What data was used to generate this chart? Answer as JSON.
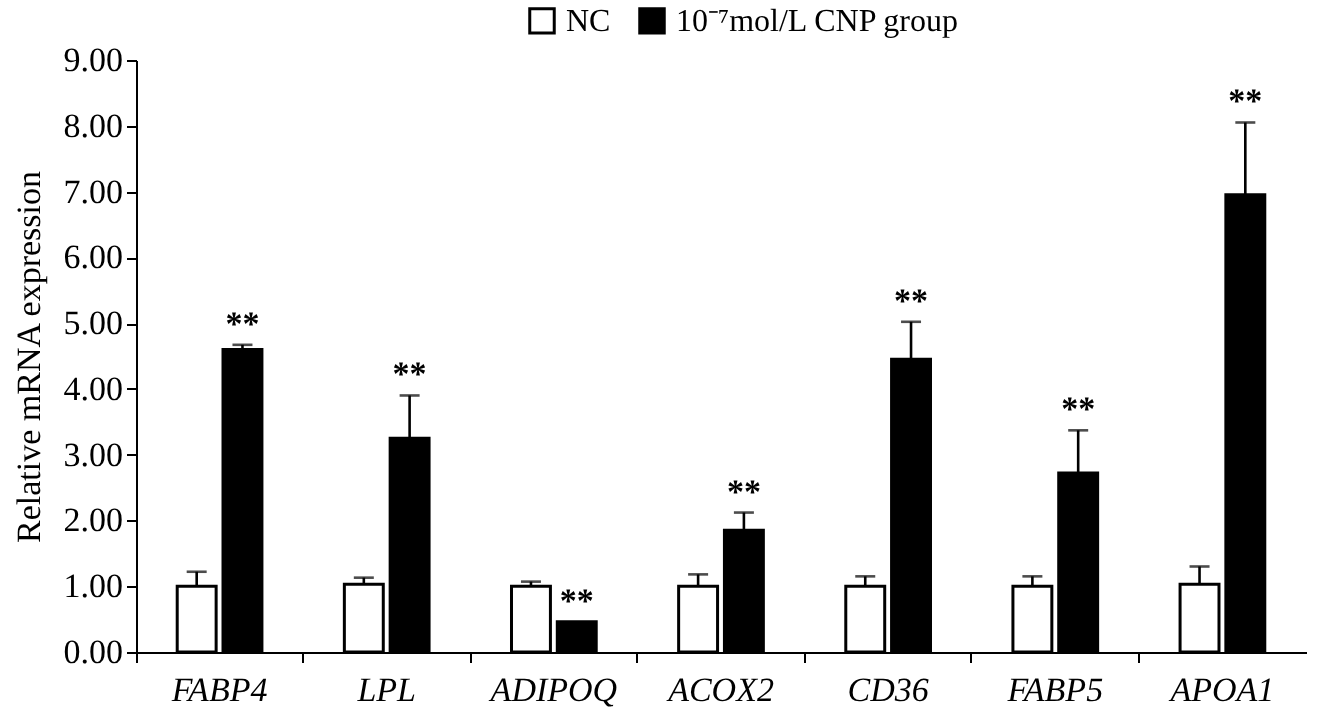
{
  "chart_data": {
    "type": "bar",
    "ylabel": "Relative mRNA expression",
    "categories": [
      "FABP4",
      "LPL",
      "ADIPOQ",
      "ACOX2",
      "CD36",
      "FABP5",
      "APOA1"
    ],
    "series": [
      {
        "name": "NC",
        "color": "#ffffff",
        "values": [
          1.0,
          1.03,
          1.0,
          1.0,
          1.0,
          1.0,
          1.03
        ],
        "errors": [
          [
            1.0,
            1.22
          ],
          [
            1.03,
            1.13
          ],
          [
            1.0,
            1.07
          ],
          [
            1.0,
            1.18
          ],
          [
            1.0,
            1.15
          ],
          [
            1.0,
            1.15
          ],
          [
            1.03,
            1.3
          ]
        ]
      },
      {
        "name": "10⁻⁷mol/L CNP  group",
        "color": "#000000",
        "values": [
          4.6,
          3.25,
          0.46,
          1.85,
          4.45,
          2.72,
          6.95
        ],
        "errors": [
          [
            4.6,
            4.67
          ],
          [
            3.25,
            3.9
          ],
          null,
          [
            1.85,
            2.12
          ],
          [
            4.45,
            5.02
          ],
          [
            2.72,
            3.37
          ],
          [
            6.95,
            8.05
          ]
        ]
      }
    ],
    "ylim": [
      0,
      9
    ],
    "yticks": [
      {
        "value": 0,
        "label": "0.00"
      },
      {
        "value": 1,
        "label": "1.00"
      },
      {
        "value": 2,
        "label": "2.00"
      },
      {
        "value": 3,
        "label": "3.00"
      },
      {
        "value": 4,
        "label": "4.00"
      },
      {
        "value": 5,
        "label": "5.00"
      },
      {
        "value": 6,
        "label": "6.00"
      },
      {
        "value": 7,
        "label": "7.00"
      },
      {
        "value": 8,
        "label": "8.00"
      },
      {
        "value": 9,
        "label": "9.00"
      }
    ],
    "annotations": [
      {
        "text": "**",
        "x": "FABP4",
        "y": 4.6
      },
      {
        "text": "**",
        "x": "LPL",
        "y": 3.25
      },
      {
        "text": "**",
        "x": "ADIPOQ",
        "y": 0.46
      },
      {
        "text": "**",
        "x": "ACOX2",
        "y": 1.85
      },
      {
        "text": "**",
        "x": "CD36",
        "y": 4.45
      },
      {
        "text": "**",
        "x": "FABP5",
        "y": 2.72
      },
      {
        "text": "**",
        "x": "APOA1",
        "y": 6.95
      }
    ],
    "grid": false,
    "legend": "top"
  }
}
